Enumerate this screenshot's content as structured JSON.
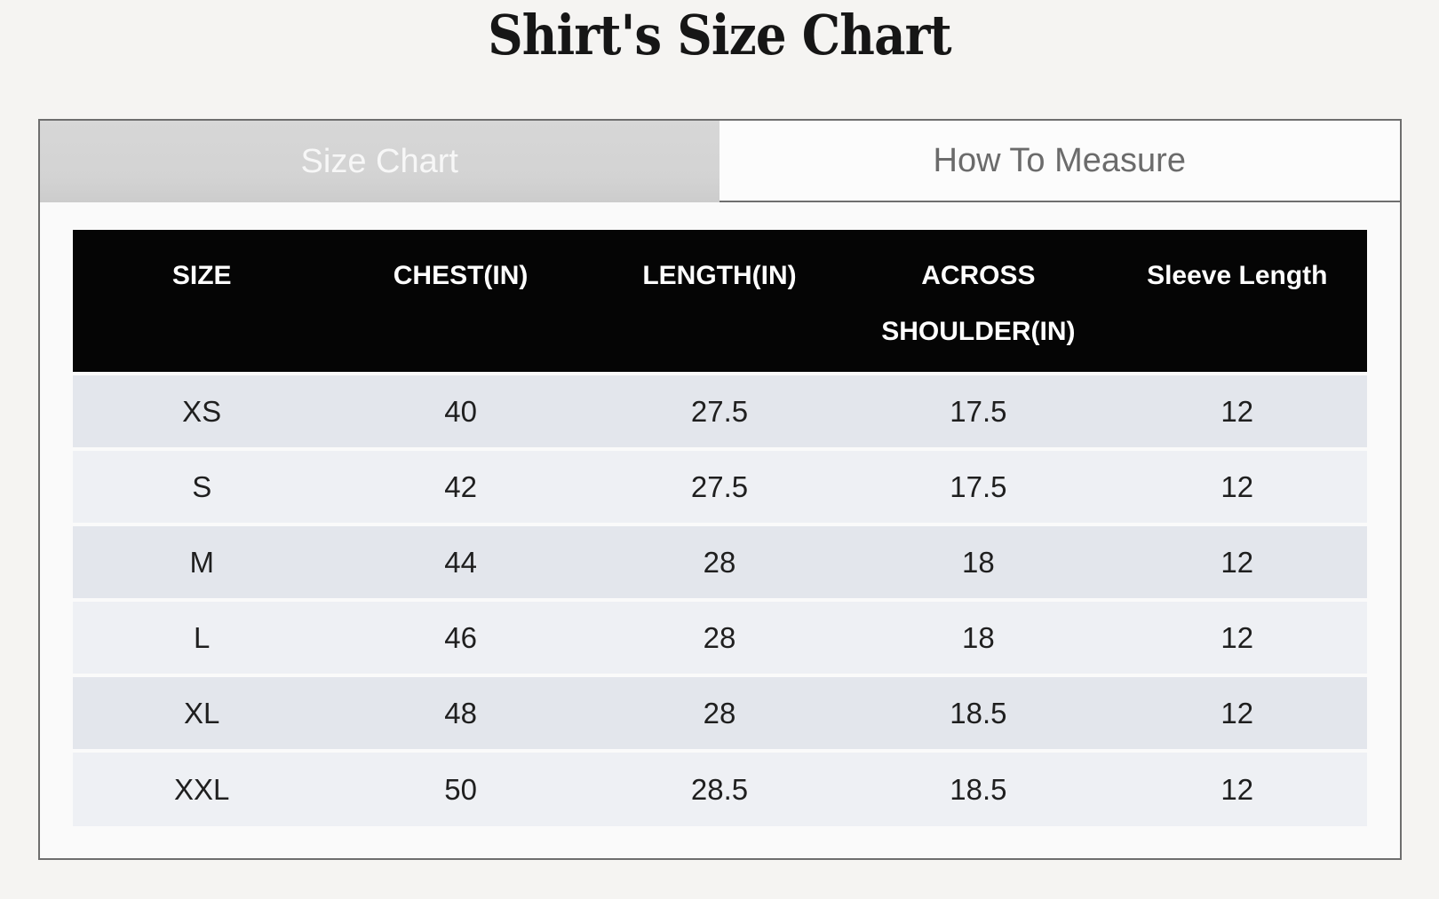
{
  "page": {
    "title": "Shirt's Size Chart"
  },
  "tabs": [
    {
      "label": "Size Chart",
      "active": true
    },
    {
      "label": "How To Measure",
      "active": false
    }
  ],
  "table": {
    "headers": [
      "SIZE",
      "CHEST(IN)",
      "LENGTH(IN)",
      "ACROSS SHOULDER(IN)",
      "Sleeve Length"
    ],
    "rows": [
      [
        "XS",
        "40",
        "27.5",
        "17.5",
        "12"
      ],
      [
        "S",
        "42",
        "27.5",
        "17.5",
        "12"
      ],
      [
        "M",
        "44",
        "28",
        "18",
        "12"
      ],
      [
        "L",
        "46",
        "28",
        "18",
        "12"
      ],
      [
        "XL",
        "48",
        "28",
        "18.5",
        "12"
      ],
      [
        "XXL",
        "50",
        "28.5",
        "18.5",
        "12"
      ]
    ]
  },
  "colors": {
    "page_background": "#f5f4f2",
    "card_border": "#6e6e6e",
    "active_tab_background": "#d3d3d3",
    "active_tab_text": "#f7f7f7",
    "inactive_tab_background": "#fcfcfc",
    "inactive_tab_text": "#6b6b6b",
    "table_header_background": "#050505",
    "table_header_text": "#ffffff",
    "row_stripe_dark": "#e3e6ec",
    "row_stripe_light": "#eef0f4"
  }
}
